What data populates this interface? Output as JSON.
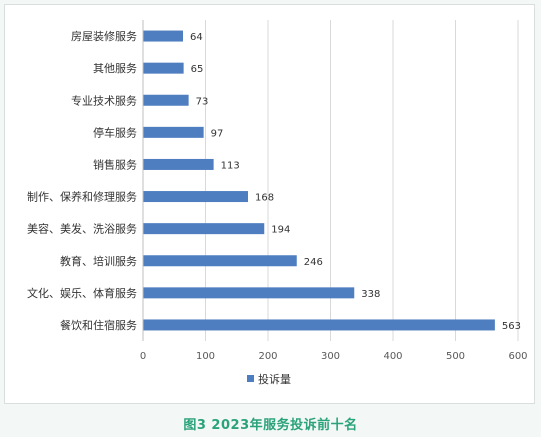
{
  "caption": "图3  2023年服务投诉前十名",
  "colors": {
    "bar": "#4f7ec0",
    "grid": "#d9d9d9",
    "axis_text": "#595959",
    "caption": "#2aa37a",
    "background": "#f3f7f5"
  },
  "chart_data": {
    "type": "bar",
    "orientation": "horizontal",
    "categories": [
      "房屋装修服务",
      "其他服务",
      "专业技术服务",
      "停车服务",
      "销售服务",
      "制作、保养和修理服务",
      "美容、美发、洗浴服务",
      "教育、培训服务",
      "文化、娱乐、体育服务",
      "餐饮和住宿服务"
    ],
    "series": [
      {
        "name": "投诉量",
        "values": [
          64,
          65,
          73,
          97,
          113,
          168,
          194,
          246,
          338,
          563
        ]
      }
    ],
    "xlim": [
      0,
      600
    ],
    "xticks": [
      0,
      100,
      200,
      300,
      400,
      500,
      600
    ],
    "grid": true,
    "legend_position": "bottom",
    "data_labels": true
  }
}
